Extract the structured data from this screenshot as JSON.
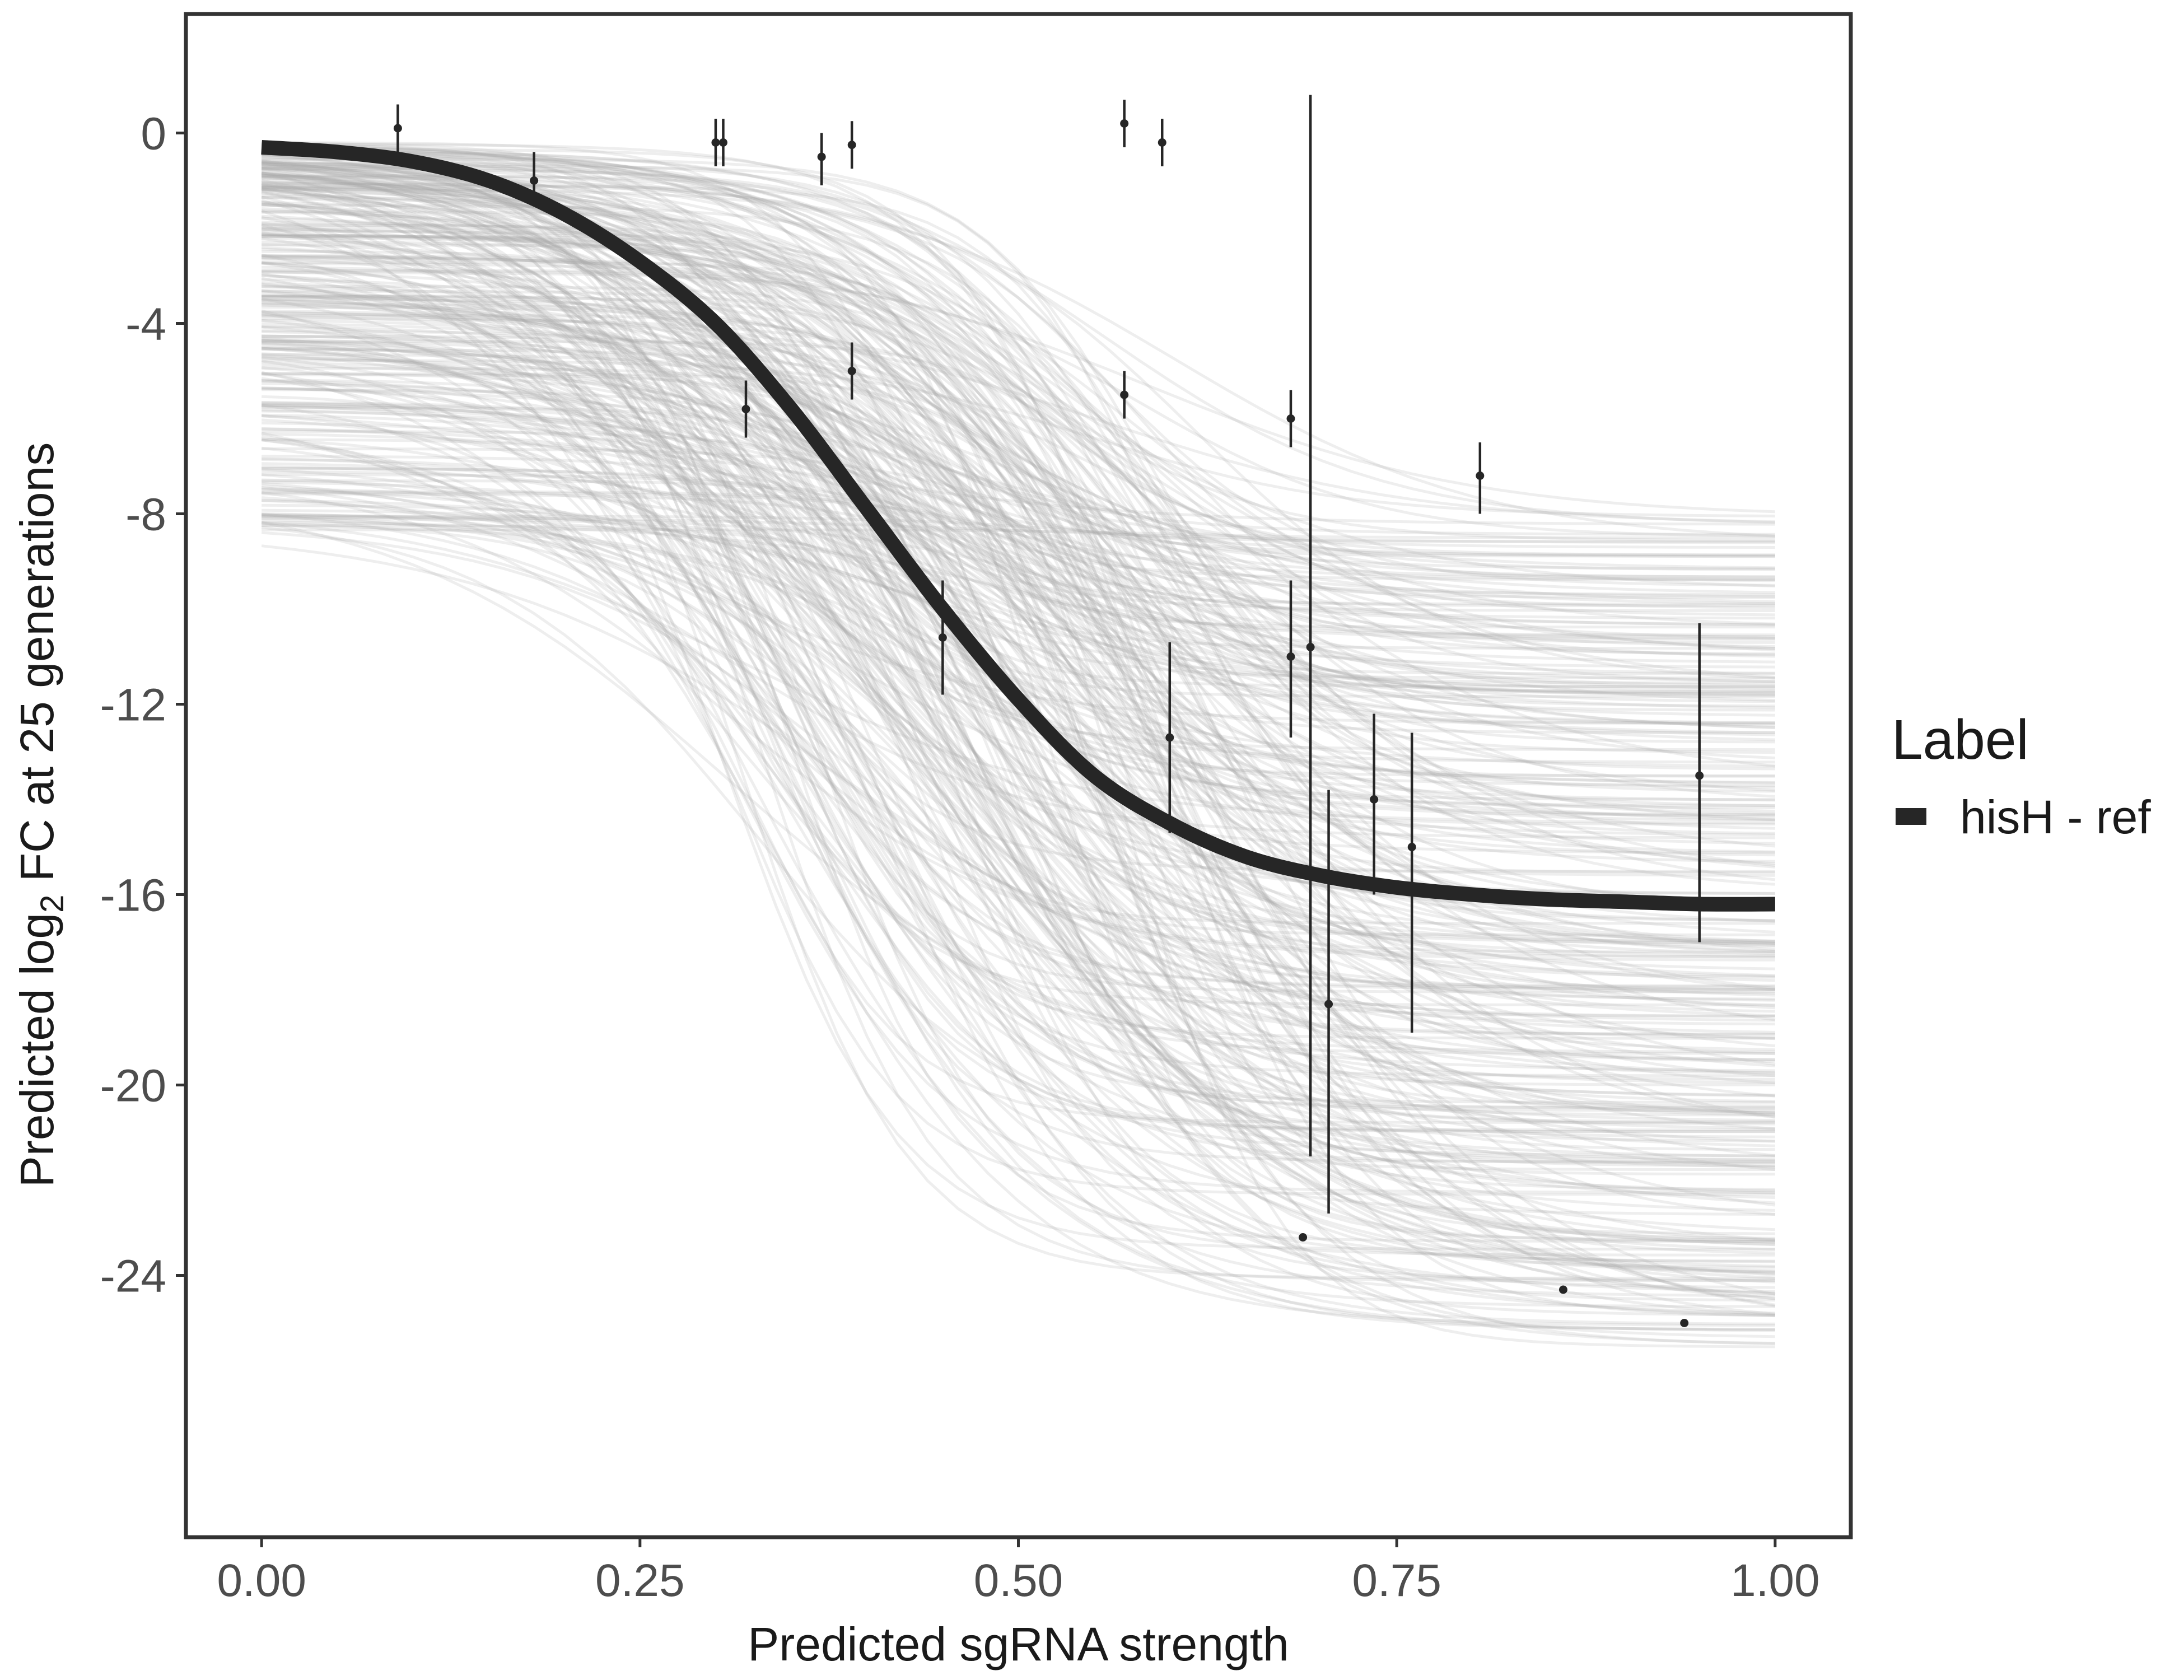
{
  "chart_data": {
    "type": "line",
    "xlabel": "Predicted sgRNA strength",
    "ylabel_parts": {
      "before": "Predicted  log",
      "sub": "2",
      "after": " FC at 25 generations"
    },
    "xlim": [
      -0.05,
      1.05
    ],
    "ylim": [
      -29.5,
      2.5
    ],
    "x_ticks": [
      {
        "value": 0.0,
        "label": "0.00"
      },
      {
        "value": 0.25,
        "label": "0.25"
      },
      {
        "value": 0.5,
        "label": "0.50"
      },
      {
        "value": 0.75,
        "label": "0.75"
      },
      {
        "value": 1.0,
        "label": "1.00"
      }
    ],
    "y_ticks": [
      {
        "value": 0,
        "label": "0"
      },
      {
        "value": -4,
        "label": "-4"
      },
      {
        "value": -8,
        "label": "-8"
      },
      {
        "value": -12,
        "label": "-12"
      },
      {
        "value": -16,
        "label": "-16"
      },
      {
        "value": -20,
        "label": "-20"
      },
      {
        "value": -24,
        "label": "-24"
      }
    ],
    "grid": false,
    "legend": {
      "title": "Label",
      "position": "right",
      "entries": [
        {
          "label": "hisH - ref",
          "color": "#262626"
        }
      ]
    },
    "fit_curve": {
      "name": "hisH - ref",
      "color": "#262626",
      "x": [
        0.0,
        0.05,
        0.1,
        0.15,
        0.2,
        0.25,
        0.3,
        0.35,
        0.4,
        0.45,
        0.5,
        0.55,
        0.6,
        0.65,
        0.7,
        0.75,
        0.8,
        0.85,
        0.9,
        0.95,
        1.0
      ],
      "y": [
        -0.3,
        -0.4,
        -0.6,
        -1.0,
        -1.7,
        -2.7,
        -4.0,
        -5.8,
        -7.9,
        -10.0,
        -11.9,
        -13.5,
        -14.5,
        -15.2,
        -15.6,
        -15.85,
        -16.0,
        -16.1,
        -16.15,
        -16.2,
        -16.2
      ]
    },
    "posterior_draws": {
      "color": "#a8a8a8",
      "count": 340,
      "y_start_range": [
        -8.5,
        -0.2
      ],
      "y_end_range": [
        -25.6,
        -7.9
      ],
      "midpoint_range": [
        0.3,
        0.62
      ]
    },
    "points": [
      {
        "x": 0.09,
        "y": 0.1,
        "lo": -0.5,
        "hi": 0.6
      },
      {
        "x": 0.18,
        "y": -1.0,
        "lo": -1.5,
        "hi": -0.4
      },
      {
        "x": 0.3,
        "y": -0.2,
        "lo": -0.7,
        "hi": 0.3
      },
      {
        "x": 0.305,
        "y": -0.2,
        "lo": -0.7,
        "hi": 0.3
      },
      {
        "x": 0.32,
        "y": -5.8,
        "lo": -6.4,
        "hi": -5.2
      },
      {
        "x": 0.37,
        "y": -0.5,
        "lo": -1.1,
        "hi": 0.0
      },
      {
        "x": 0.39,
        "y": -0.25,
        "lo": -0.75,
        "hi": 0.25
      },
      {
        "x": 0.39,
        "y": -5.0,
        "lo": -5.6,
        "hi": -4.4
      },
      {
        "x": 0.45,
        "y": -10.6,
        "lo": -11.8,
        "hi": -9.4
      },
      {
        "x": 0.57,
        "y": 0.2,
        "lo": -0.3,
        "hi": 0.7
      },
      {
        "x": 0.57,
        "y": -5.5,
        "lo": -6.0,
        "hi": -5.0
      },
      {
        "x": 0.595,
        "y": -0.2,
        "lo": -0.7,
        "hi": 0.3
      },
      {
        "x": 0.6,
        "y": -12.7,
        "lo": -14.7,
        "hi": -10.7
      },
      {
        "x": 0.68,
        "y": -6.0,
        "lo": -6.6,
        "hi": -5.4
      },
      {
        "x": 0.68,
        "y": -11.0,
        "lo": -12.7,
        "hi": -9.4
      },
      {
        "x": 0.688,
        "y": -23.2,
        "lo": -23.2,
        "hi": -23.2
      },
      {
        "x": 0.693,
        "y": -10.8,
        "lo": -21.5,
        "hi": 0.8
      },
      {
        "x": 0.705,
        "y": -18.3,
        "lo": -22.7,
        "hi": -13.8
      },
      {
        "x": 0.735,
        "y": -14.0,
        "lo": -16.0,
        "hi": -12.2
      },
      {
        "x": 0.76,
        "y": -15.0,
        "lo": -18.9,
        "hi": -12.6
      },
      {
        "x": 0.805,
        "y": -7.2,
        "lo": -8.0,
        "hi": -6.5
      },
      {
        "x": 0.86,
        "y": -24.3,
        "lo": -24.3,
        "hi": -24.3
      },
      {
        "x": 0.94,
        "y": -25.0,
        "lo": -25.0,
        "hi": -25.0
      },
      {
        "x": 0.95,
        "y": -13.5,
        "lo": -17.0,
        "hi": -10.3
      }
    ]
  }
}
